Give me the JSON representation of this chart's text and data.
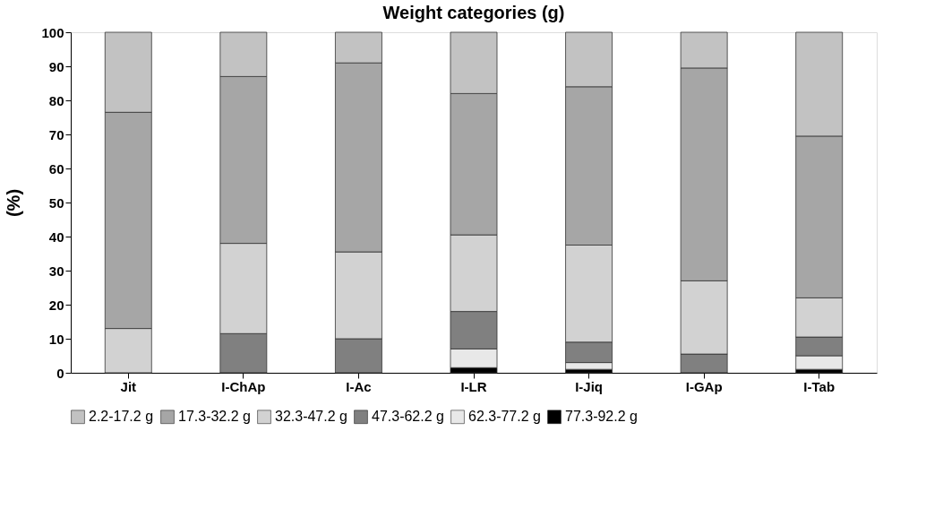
{
  "chart_data": {
    "type": "bar",
    "stacked": true,
    "title": "Weight categories (g)",
    "ylabel": "(%)",
    "categories": [
      "Jit",
      "I-ChAp",
      "I-Ac",
      "I-LR",
      "I-Jiq",
      "I-GAp",
      "I-Tab"
    ],
    "series": [
      {
        "name": "77.3-92.2 g",
        "color": "#000000",
        "values": [
          null,
          null,
          null,
          1.5,
          1,
          null,
          1
        ]
      },
      {
        "name": "62.3-77.2 g",
        "color": "#e8e8e8",
        "values": [
          null,
          null,
          null,
          5.5,
          2,
          null,
          4
        ]
      },
      {
        "name": "47.3-62.2 g",
        "color": "#808080",
        "values": [
          null,
          11.5,
          10,
          11,
          6,
          5.5,
          5.5
        ]
      },
      {
        "name": "32.3-47.2 g",
        "color": "#d2d2d2",
        "values": [
          13,
          26.5,
          25.5,
          22.5,
          28.5,
          21.5,
          11.5
        ]
      },
      {
        "name": "17.3-32.2 g",
        "color": "#a6a6a6",
        "values": [
          63.5,
          49,
          55.5,
          41.5,
          46.5,
          62.5,
          47.5
        ]
      },
      {
        "name": "2.2-17.2 g",
        "color": "#c2c2c2",
        "values": [
          23.5,
          13,
          9,
          18,
          16,
          10.5,
          30.5
        ]
      }
    ],
    "ylim": [
      0,
      100
    ],
    "yticks": [
      0,
      10,
      20,
      30,
      40,
      50,
      60,
      70,
      80,
      90,
      100
    ],
    "grid": false,
    "legend": "bottom"
  }
}
